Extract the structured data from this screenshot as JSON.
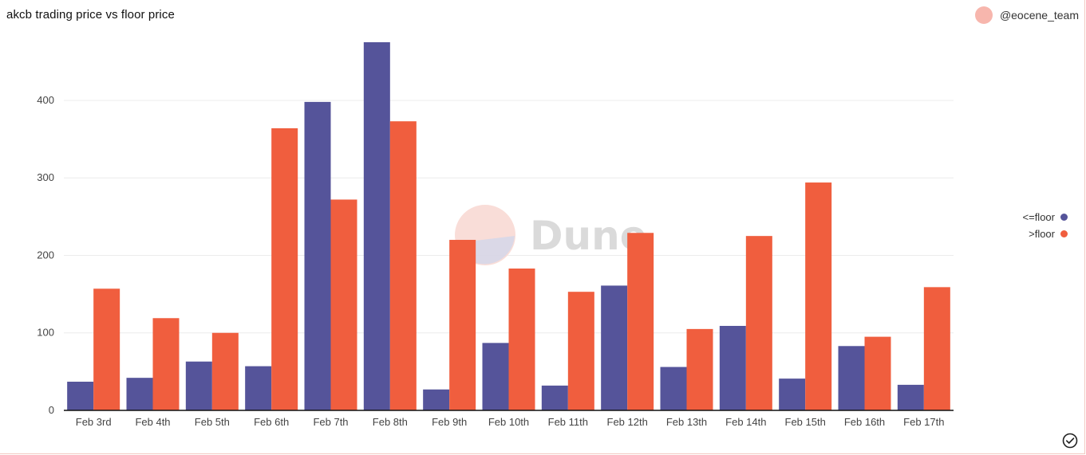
{
  "header": {
    "title": "akcb trading price vs floor price",
    "username": "@eocene_team"
  },
  "watermark": {
    "text": "Dune"
  },
  "icons": {
    "status": "check-circle-icon"
  },
  "colors": {
    "series1": "#55549a",
    "series2": "#f05e3e",
    "avatar": "#f7b6ad"
  },
  "chart_data": {
    "type": "bar",
    "title": "akcb trading price vs floor price",
    "categories": [
      "Feb 3rd",
      "Feb 4th",
      "Feb 5th",
      "Feb 6th",
      "Feb 7th",
      "Feb 8th",
      "Feb 9th",
      "Feb 10th",
      "Feb 11th",
      "Feb 12th",
      "Feb 13th",
      "Feb 14th",
      "Feb 15th",
      "Feb 16th",
      "Feb 17th"
    ],
    "series": [
      {
        "name": "<=floor",
        "color": "#55549a",
        "values": [
          37,
          42,
          63,
          57,
          398,
          475,
          27,
          87,
          32,
          161,
          56,
          109,
          41,
          83,
          33
        ]
      },
      {
        "name": ">floor",
        "color": "#f05e3e",
        "values": [
          157,
          119,
          100,
          364,
          272,
          373,
          220,
          183,
          153,
          229,
          105,
          225,
          294,
          95,
          159
        ]
      }
    ],
    "yticks": [
      0,
      100,
      200,
      300,
      400
    ],
    "ylim": [
      0,
      475
    ],
    "grid": true,
    "legend": "right"
  }
}
